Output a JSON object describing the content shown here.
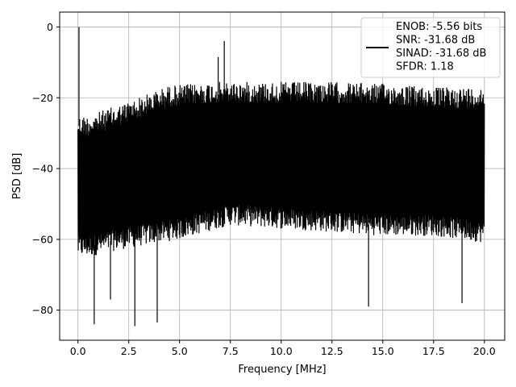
{
  "chart_data": {
    "type": "line",
    "title": "",
    "xlabel": "Frequency [MHz]",
    "ylabel": "PSD [dB]",
    "xlim": [
      -0.9,
      21.0
    ],
    "ylim": [
      -88.5,
      4.2
    ],
    "xticks": [
      0.0,
      2.5,
      5.0,
      7.5,
      10.0,
      12.5,
      15.0,
      17.5,
      20.0
    ],
    "xtick_labels": [
      "0.0",
      "2.5",
      "5.0",
      "7.5",
      "10.0",
      "12.5",
      "15.0",
      "17.5",
      "20.0"
    ],
    "yticks": [
      0,
      -20,
      -40,
      -60,
      -80
    ],
    "ytick_labels": [
      "0",
      "−20",
      "−40",
      "−60",
      "−80"
    ],
    "grid": true,
    "legend_position": "top-right",
    "series": [
      {
        "color": "#000000",
        "x_range": [
          0.0,
          20.0
        ],
        "upper_envelope": {
          "x": [
            0.0,
            0.5,
            2.5,
            4.5,
            7.0,
            10.0,
            12.5,
            15.0,
            17.5,
            20.0
          ],
          "y": [
            -25,
            -25,
            -21,
            -16.5,
            -15.5,
            -15.5,
            -15.5,
            -16,
            -17,
            -17
          ]
        },
        "lower_envelope": {
          "x": [
            0.0,
            0.5,
            2.0,
            5.0,
            7.5,
            10.0,
            12.5,
            15.0,
            17.5,
            20.0
          ],
          "y": [
            -65,
            -65,
            -63,
            -60,
            -56,
            -57,
            -58,
            -59,
            -59,
            -61
          ]
        },
        "peaks": [
          {
            "x": 0.05,
            "y": 0
          },
          {
            "x": 6.9,
            "y": -8.5
          },
          {
            "x": 7.2,
            "y": -4
          }
        ],
        "dips": [
          {
            "x": 0.8,
            "y": -84
          },
          {
            "x": 1.6,
            "y": -77
          },
          {
            "x": 2.8,
            "y": -84.5
          },
          {
            "x": 3.9,
            "y": -83.5
          },
          {
            "x": 14.3,
            "y": -79
          },
          {
            "x": 18.9,
            "y": -78
          }
        ]
      }
    ],
    "legend_entries": [
      "ENOB: -5.56 bits",
      "SNR: -31.68 dB",
      "SINAD: -31.68 dB",
      "SFDR: 1.18"
    ]
  },
  "colors": {
    "line": "#000000",
    "grid": "#b0b0b0",
    "legend_border": "#cccccc",
    "background": "#ffffff"
  }
}
